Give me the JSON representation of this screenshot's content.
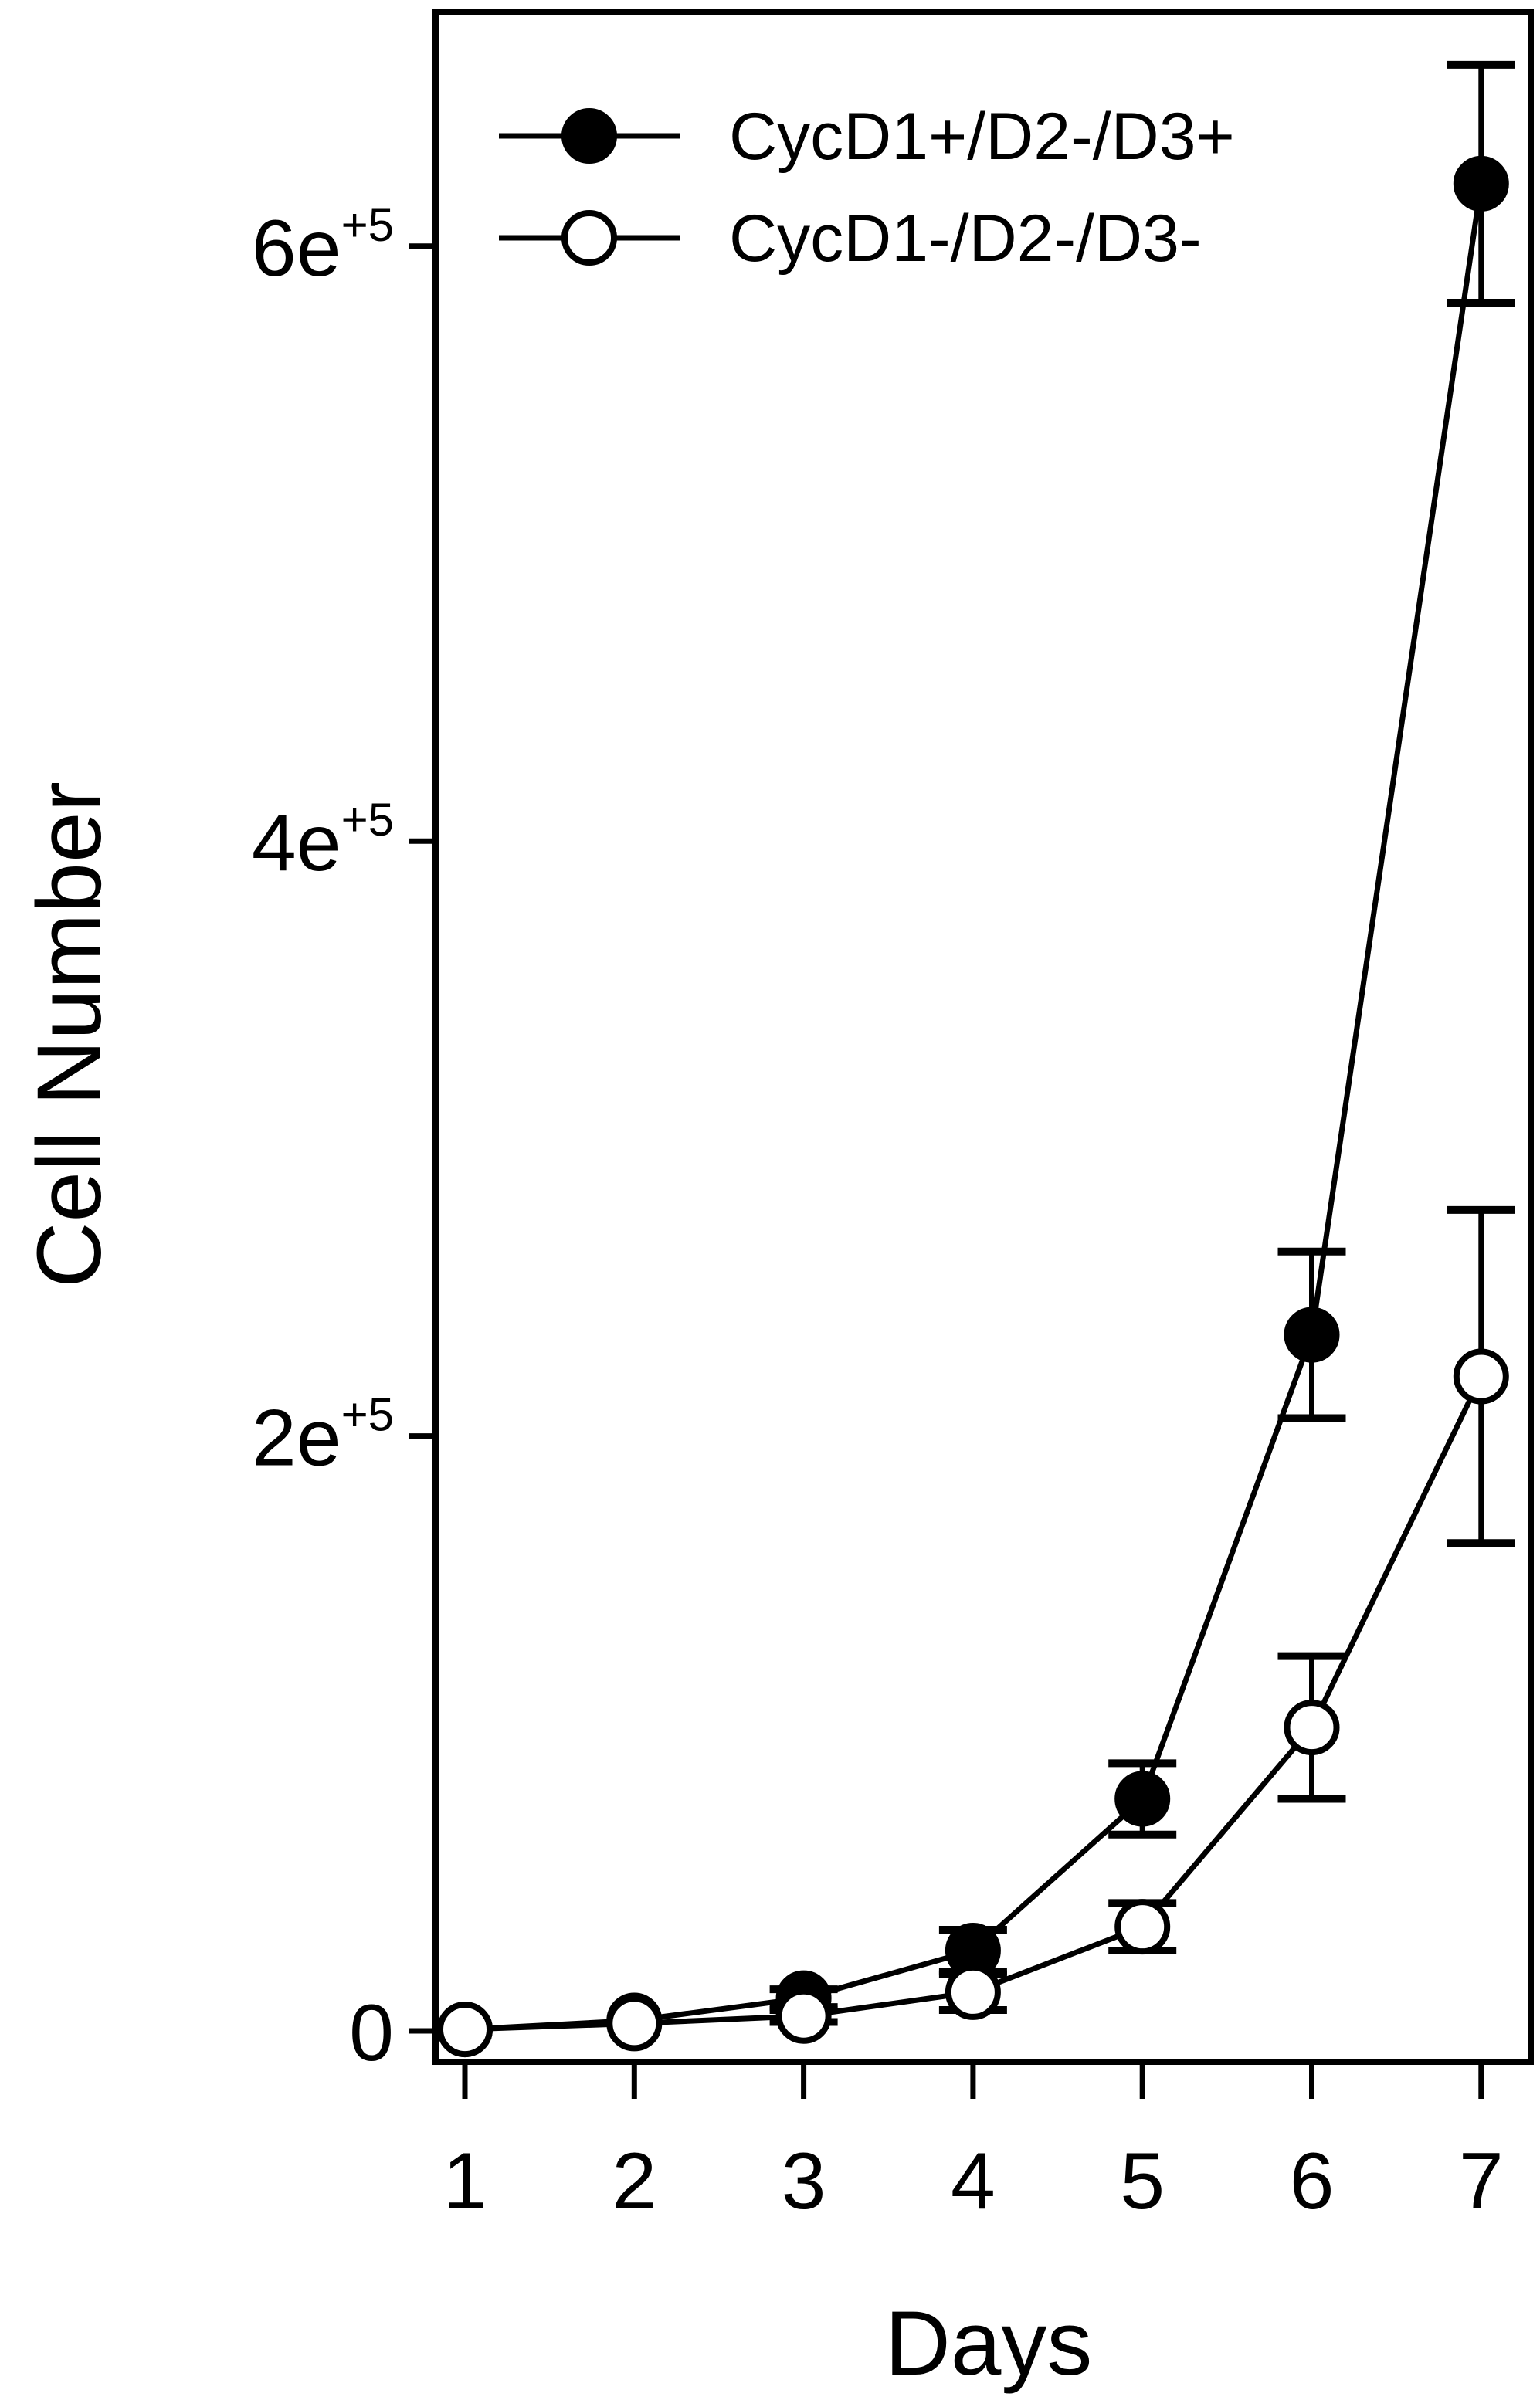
{
  "chart_data": {
    "type": "line",
    "title": "",
    "xlabel": "Days",
    "ylabel": "Cell Number",
    "x": [
      1,
      2,
      3,
      4,
      5,
      6,
      7
    ],
    "xlim": [
      0.8,
      7.3
    ],
    "ylim": [
      -5000,
      690000
    ],
    "x_ticks": [
      "1",
      "2",
      "3",
      "4",
      "5",
      "6",
      "7"
    ],
    "y_ticks": [
      {
        "value": 0,
        "base": "0",
        "exp": ""
      },
      {
        "value": 200000,
        "base": "2e",
        "exp": "+5"
      },
      {
        "value": 400000,
        "base": "4e",
        "exp": "+5"
      },
      {
        "value": 600000,
        "base": "6e",
        "exp": "+5"
      }
    ],
    "grid": false,
    "legend_position": "top-left",
    "series": [
      {
        "name": "CycD1+/D2-/D3+",
        "marker": "filled-circle",
        "values": [
          500,
          3500,
          11000,
          27000,
          78000,
          234000,
          621000
        ],
        "errors": [
          0,
          0,
          3000,
          7000,
          12000,
          28000,
          40000
        ]
      },
      {
        "name": "CycD1-/D2-/D3-",
        "marker": "open-circle",
        "values": [
          500,
          2500,
          5000,
          13000,
          35000,
          102000,
          220000
        ],
        "errors": [
          0,
          0,
          2000,
          6000,
          8000,
          24000,
          56000
        ]
      }
    ]
  }
}
